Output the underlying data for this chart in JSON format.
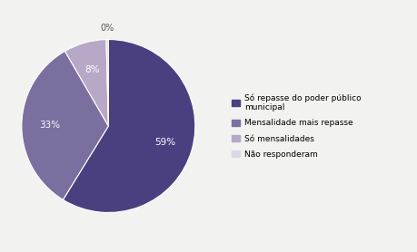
{
  "labels": [
    "Só repasse do poder público\nmunicipal",
    "Mensalidade mais repasse",
    "Só mensalidades",
    "Não responderam"
  ],
  "values": [
    59,
    33,
    8,
    0
  ],
  "colors": [
    "#4a4080",
    "#7b6fa0",
    "#b8a8c8",
    "#dcd8e8"
  ],
  "pct_labels": [
    "59%",
    "33%",
    "8%",
    "0%"
  ],
  "legend_labels": [
    "Só repasse do poder público\nmunicipal",
    "Mensalidade mais repasse",
    "Só mensalidades",
    "Não responderam"
  ],
  "background_color": "#f2f2f0",
  "startangle": 90,
  "figsize": [
    4.59,
    2.78
  ],
  "dpi": 100
}
